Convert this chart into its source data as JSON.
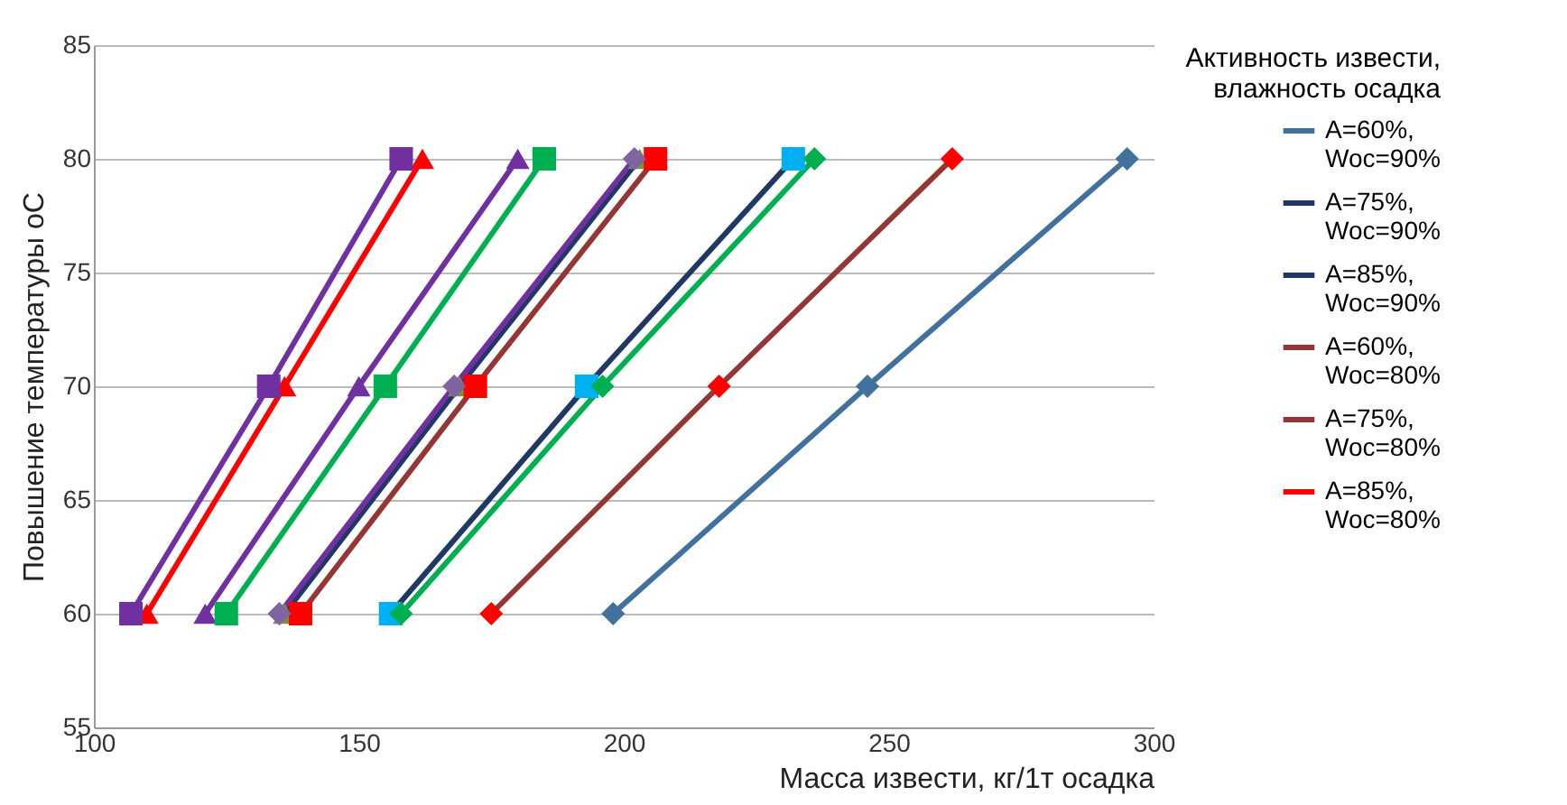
{
  "chart_data": {
    "type": "line",
    "xlabel": "Масса извести, кг/1т осадка",
    "ylabel": "Повышение температуры оС",
    "legend_title": "Активность извести, влажность осадка",
    "xlim": [
      100,
      300
    ],
    "xticks": [
      100,
      150,
      200,
      250,
      300
    ],
    "ylim": [
      55,
      85
    ],
    "yticks": [
      55,
      60,
      65,
      70,
      75,
      80,
      85
    ],
    "grid": "y",
    "legend": "right",
    "series": [
      {
        "name": "A=60%, Woc=90%",
        "color": "#41719c",
        "colors": [
          "#41719c",
          "#41719c",
          "#41719c"
        ],
        "marker": "diamond",
        "x": [
          198,
          246,
          295
        ],
        "values": [
          60,
          70,
          80
        ]
      },
      {
        "name": "A=75%, Woc=90%",
        "color": "#1f3864",
        "colors": [
          "#00b0f0",
          "#00b0f0",
          "#00b0f0"
        ],
        "marker": "square",
        "x": [
          156,
          193,
          232
        ],
        "values": [
          60,
          70,
          80
        ]
      },
      {
        "name": "A=85%, Woc=90%",
        "color": "#1f3864",
        "colors": [
          "#77933c",
          "#77933c",
          "#77933c"
        ],
        "marker": "triangle",
        "x": [
          136,
          169,
          203
        ],
        "values": [
          60,
          70,
          80
        ]
      },
      {
        "name": "A=60%, Woc=80%",
        "color": "#943634",
        "colors": [
          "#ff0000",
          "#ff0000",
          "#ff0000"
        ],
        "marker": "diamond",
        "x": [
          175,
          218,
          262
        ],
        "values": [
          60,
          70,
          80
        ]
      },
      {
        "name": "A=75%, Woc=80%",
        "color": "#943634",
        "colors": [
          "#ff0000",
          "#ff0000",
          "#ff0000"
        ],
        "marker": "square",
        "x": [
          139,
          172,
          206
        ],
        "values": [
          60,
          70,
          80
        ]
      },
      {
        "name": "A=85%, Woc=80%",
        "color": "#ff0000",
        "colors": [
          "#ff0000",
          "#ff0000",
          "#ff0000"
        ],
        "marker": "triangle",
        "x": [
          110,
          136,
          162
        ],
        "values": [
          60,
          70,
          80
        ]
      },
      {
        "color": "#7030a0",
        "colors": [
          "#7030a0",
          "#7030a0",
          "#7030a0"
        ],
        "marker": "square",
        "x": [
          107,
          133,
          158
        ],
        "values": [
          60,
          70,
          80
        ]
      },
      {
        "color": "#7030a0",
        "colors": [
          "#7030a0",
          "#7030a0",
          "#7030a0"
        ],
        "marker": "triangle",
        "x": [
          121,
          150,
          180
        ],
        "values": [
          60,
          70,
          80
        ]
      },
      {
        "color": "#00b050",
        "colors": [
          "#00b050",
          "#00b050",
          "#00b050"
        ],
        "marker": "square",
        "x": [
          125,
          155,
          185
        ],
        "values": [
          60,
          70,
          80
        ]
      },
      {
        "color": "#7030a0",
        "colors": [
          "#8064a2",
          "#8064a2",
          "#8064a2"
        ],
        "marker": "diamond",
        "x": [
          135,
          168,
          202
        ],
        "values": [
          60,
          70,
          80
        ]
      },
      {
        "color": "#00b050",
        "colors": [
          "#00b050",
          "#00b050",
          "#00b050"
        ],
        "marker": "diamond",
        "x": [
          158,
          196,
          236
        ],
        "values": [
          60,
          70,
          80
        ]
      }
    ]
  }
}
